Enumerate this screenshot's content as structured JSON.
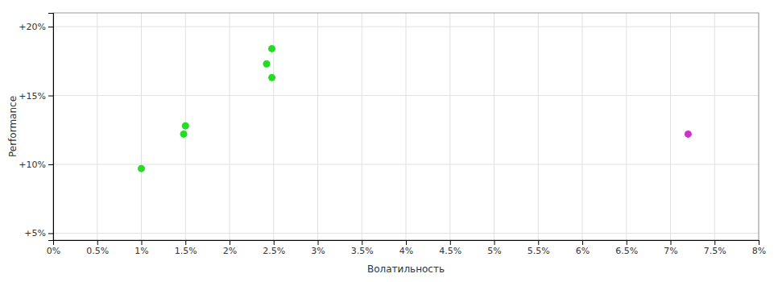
{
  "chart_data": {
    "type": "scatter",
    "xlabel": "Волатильность",
    "ylabel": "Performance",
    "xlim": [
      0.0,
      0.08
    ],
    "ylim": [
      0.045,
      0.21
    ],
    "xticks": [
      {
        "value": 0.0,
        "label": "0%"
      },
      {
        "value": 0.005,
        "label": "0.5%"
      },
      {
        "value": 0.01,
        "label": "1%"
      },
      {
        "value": 0.015,
        "label": "1.5%"
      },
      {
        "value": 0.02,
        "label": "2%"
      },
      {
        "value": 0.025,
        "label": "2.5%"
      },
      {
        "value": 0.03,
        "label": "3%"
      },
      {
        "value": 0.035,
        "label": "3.5%"
      },
      {
        "value": 0.04,
        "label": "4%"
      },
      {
        "value": 0.045,
        "label": "4.5%"
      },
      {
        "value": 0.05,
        "label": "5%"
      },
      {
        "value": 0.055,
        "label": "5.5%"
      },
      {
        "value": 0.06,
        "label": "6%"
      },
      {
        "value": 0.065,
        "label": "6.5%"
      },
      {
        "value": 0.07,
        "label": "7%"
      },
      {
        "value": 0.075,
        "label": "7.5%"
      },
      {
        "value": 0.08,
        "label": "8%"
      }
    ],
    "yticks": [
      {
        "value": 0.05,
        "label": "+5%"
      },
      {
        "value": 0.1,
        "label": "+10%"
      },
      {
        "value": 0.15,
        "label": "+15%"
      },
      {
        "value": 0.2,
        "label": "+20%"
      }
    ],
    "grid": true,
    "series": [
      {
        "color": "#22dd22",
        "x": [
          0.0248,
          0.0242,
          0.0248,
          0.015,
          0.0148,
          0.01
        ],
        "values": [
          0.184,
          0.173,
          0.163,
          0.128,
          0.122,
          0.097
        ]
      },
      {
        "color": "#cc33cc",
        "x": [
          0.072
        ],
        "values": [
          0.122
        ]
      }
    ]
  }
}
